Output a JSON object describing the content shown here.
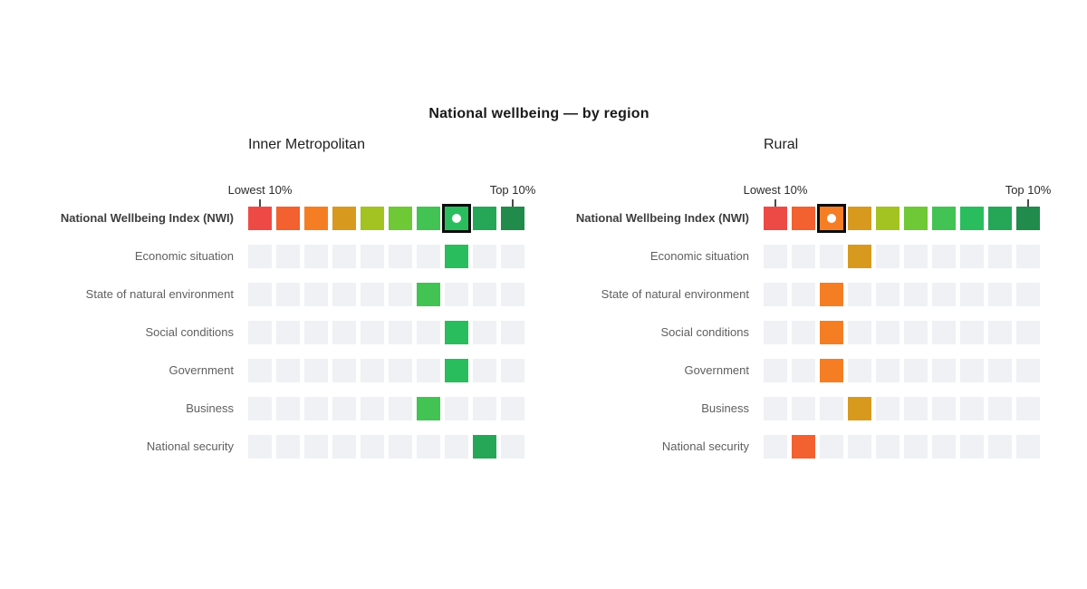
{
  "title": "National wellbeing — by region",
  "chart_data": {
    "type": "heatmap",
    "title": "National wellbeing — by region",
    "deciles": 10,
    "axis": {
      "lowest_label": "Lowest 10%",
      "top_label": "Top 10%"
    },
    "palette": [
      "#ee4a45",
      "#f2612f",
      "#f57e24",
      "#d79a1f",
      "#a3c322",
      "#6fc835",
      "#43c353",
      "#2abd5e",
      "#26a758",
      "#218b4b"
    ],
    "empty_cell_color": "#eff1f5",
    "highlight_border_color": "#0d0d0d",
    "highlight_dot_color": "#ffffff",
    "categories": [
      "National Wellbeing Index (NWI)",
      "Economic situation",
      "State of natural environment",
      "Social conditions",
      "Government",
      "Business",
      "National security"
    ],
    "panels": [
      {
        "header": "Inner Metropolitan",
        "deciles_by_category": [
          8,
          8,
          7,
          8,
          8,
          7,
          9
        ]
      },
      {
        "header": "Rural",
        "deciles_by_category": [
          3,
          4,
          3,
          3,
          3,
          4,
          2
        ]
      }
    ]
  }
}
